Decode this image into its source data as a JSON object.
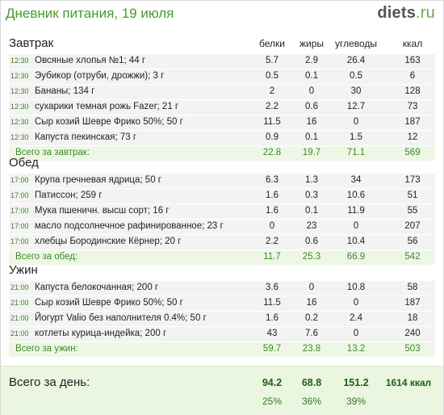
{
  "header": {
    "title": "Дневник питания, 19 июля",
    "logo_name": "diets",
    "logo_tld": ".ru"
  },
  "columns": {
    "protein": "белки",
    "fat": "жиры",
    "carbs": "углеводы",
    "kcal": "ккал"
  },
  "sections": [
    {
      "title": "Завтрак",
      "items": [
        {
          "time": "12:30",
          "name": "Овсяные хлопья №1; 44 г",
          "p": "5.7",
          "f": "2.9",
          "c": "26.4",
          "k": "163"
        },
        {
          "time": "12:30",
          "name": "Эубикор (отруби, дрожжи); 3 г",
          "p": "0.5",
          "f": "0.1",
          "c": "0.5",
          "k": "6"
        },
        {
          "time": "12:30",
          "name": "Бананы; 134 г",
          "p": "2",
          "f": "0",
          "c": "30",
          "k": "128"
        },
        {
          "time": "12:30",
          "name": "сухарики темная рожь Fazer; 21 г",
          "p": "2.2",
          "f": "0.6",
          "c": "12.7",
          "k": "73"
        },
        {
          "time": "12:30",
          "name": "Сыр козий Шевре Фрико 50%; 50 г",
          "p": "11.5",
          "f": "16",
          "c": "0",
          "k": "187"
        },
        {
          "time": "12:30",
          "name": "Капуста пекинская; 73 г",
          "p": "0.9",
          "f": "0.1",
          "c": "1.5",
          "k": "12"
        }
      ],
      "total": {
        "label": "Всего за завтрак:",
        "p": "22.8",
        "f": "19.7",
        "c": "71.1",
        "k": "569"
      }
    },
    {
      "title": "Обед",
      "items": [
        {
          "time": "17:00",
          "name": "Крупа гречневая ядрица; 50 г",
          "p": "6.3",
          "f": "1.3",
          "c": "34",
          "k": "173"
        },
        {
          "time": "17:00",
          "name": "Патиссон; 259 г",
          "p": "1.6",
          "f": "0.3",
          "c": "10.6",
          "k": "51"
        },
        {
          "time": "17:00",
          "name": "Мука пшеничн. высш сорт; 16 г",
          "p": "1.6",
          "f": "0.1",
          "c": "11.9",
          "k": "55"
        },
        {
          "time": "17:00",
          "name": "масло подсолнечное рафинированное; 23 г",
          "p": "0",
          "f": "23",
          "c": "0",
          "k": "207"
        },
        {
          "time": "17:00",
          "name": "хлебцы Бородинские Кёрнер; 20 г",
          "p": "2.2",
          "f": "0.6",
          "c": "10.4",
          "k": "56"
        }
      ],
      "total": {
        "label": "Всего за обед:",
        "p": "11.7",
        "f": "25.3",
        "c": "66.9",
        "k": "542"
      }
    },
    {
      "title": "Ужин",
      "items": [
        {
          "time": "21:00",
          "name": "Капуста белокочанная; 200 г",
          "p": "3.6",
          "f": "0",
          "c": "10.8",
          "k": "58"
        },
        {
          "time": "21:00",
          "name": "Сыр козий Шевре Фрико 50%; 50 г",
          "p": "11.5",
          "f": "16",
          "c": "0",
          "k": "187"
        },
        {
          "time": "21:00",
          "name": "Йогурт Valio без наполнителя 0.4%; 50 г",
          "p": "1.6",
          "f": "0.2",
          "c": "2.4",
          "k": "18"
        },
        {
          "time": "21:00",
          "name": "котлеты курица-индейка; 200 г",
          "p": "43",
          "f": "7.6",
          "c": "0",
          "k": "240"
        }
      ],
      "total": {
        "label": "Всего за ужин:",
        "p": "59.7",
        "f": "23.8",
        "c": "13.2",
        "k": "503"
      }
    }
  ],
  "day_total": {
    "label": "Всего за день:",
    "p": "94.2",
    "f": "68.8",
    "c": "151.2",
    "k": "1614 ккал",
    "p_pct": "25%",
    "f_pct": "36%",
    "c_pct": "39%"
  },
  "colors": {
    "accent": "#4a9a2c",
    "total_text": "#3b8a26",
    "day_bg": "#eaf6e0"
  }
}
